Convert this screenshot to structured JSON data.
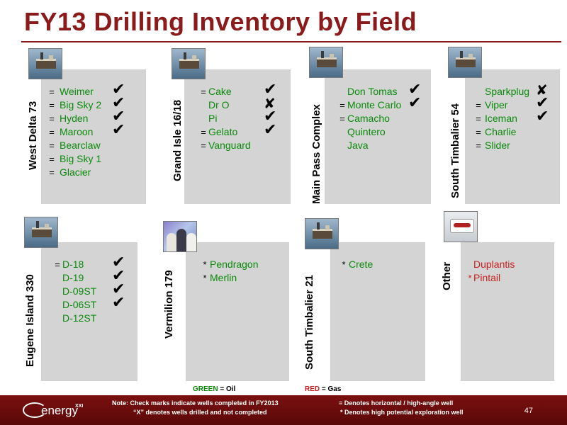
{
  "title": "FY13 Drilling Inventory by Field",
  "fields": [
    {
      "name": "West Delta 73",
      "image": "offshore-platform-photo",
      "wells": [
        {
          "name": "Weimer",
          "marker": "=",
          "status": "check"
        },
        {
          "name": "Big Sky 2",
          "marker": "=",
          "status": "check"
        },
        {
          "name": "Hyden",
          "marker": "=",
          "status": "check"
        },
        {
          "name": "Maroon",
          "marker": "=",
          "status": "check"
        },
        {
          "name": "Bearclaw",
          "marker": "=",
          "status": ""
        },
        {
          "name": "Big Sky 1",
          "marker": "=",
          "status": ""
        },
        {
          "name": "Glacier",
          "marker": "=",
          "status": ""
        }
      ]
    },
    {
      "name": "Grand Isle 16/18",
      "image": "offshore-platform-photo",
      "wells": [
        {
          "name": "Cake",
          "marker": "=",
          "status": "check"
        },
        {
          "name": "Dr O",
          "marker": "",
          "status": "x"
        },
        {
          "name": "Pi",
          "marker": "",
          "status": "check"
        },
        {
          "name": "Gelato",
          "marker": "=",
          "status": "check"
        },
        {
          "name": "Vanguard",
          "marker": "=",
          "status": ""
        }
      ]
    },
    {
      "name": "Main Pass Complex",
      "image": "offshore-platform-photo",
      "wells": [
        {
          "name": "Don Tomas",
          "marker": "",
          "status": "check"
        },
        {
          "name": "Monte Carlo",
          "marker": "=",
          "status": "check"
        },
        {
          "name": "Camacho",
          "marker": "=",
          "status": ""
        },
        {
          "name": "Quintero",
          "marker": "",
          "status": ""
        },
        {
          "name": "Java",
          "marker": "",
          "status": ""
        }
      ]
    },
    {
      "name": "South Timbalier 54",
      "image": "offshore-platform-photo",
      "wells": [
        {
          "name": "Sparkplug",
          "marker": "",
          "status": "x"
        },
        {
          "name": "Viper",
          "marker": "=",
          "status": "check"
        },
        {
          "name": "Iceman",
          "marker": "=",
          "status": "check"
        },
        {
          "name": "Charlie",
          "marker": "=",
          "status": ""
        },
        {
          "name": "Slider",
          "marker": "=",
          "status": ""
        }
      ]
    },
    {
      "name": "Eugene Island 330",
      "image": "offshore-platform-photo",
      "wells": [
        {
          "name": "D-18",
          "marker": "=",
          "status": "check"
        },
        {
          "name": "D-19",
          "marker": "",
          "status": "check"
        },
        {
          "name": "D-09ST",
          "marker": "",
          "status": "check"
        },
        {
          "name": "D-06ST",
          "marker": "",
          "status": "check"
        },
        {
          "name": "D-12ST",
          "marker": "",
          "status": ""
        }
      ]
    },
    {
      "name": "Vermilion 179",
      "image": "people-meeting-photo",
      "wells": [
        {
          "name": "Pendragon",
          "marker": "*",
          "status": ""
        },
        {
          "name": "Merlin",
          "marker": "*",
          "status": ""
        }
      ]
    },
    {
      "name": "South Timbalier 21",
      "image": "offshore-platform-photo",
      "wells": [
        {
          "name": "Crete",
          "marker": "*",
          "status": ""
        }
      ]
    },
    {
      "name": "Other",
      "image": "company-sign-photo",
      "wells": [
        {
          "name": "Duplantis",
          "marker": "",
          "status": "",
          "color": "red"
        },
        {
          "name": "Pintail",
          "marker": "*",
          "status": "",
          "color": "red"
        }
      ]
    }
  ],
  "legend": {
    "green_word": "GREEN",
    "green_rest": " = Oil",
    "red_word": "RED",
    "red_rest": " = Gas"
  },
  "footer": {
    "logo_text": "energy",
    "logo_sup": "XXI",
    "note_line1": "Note:  Check marks indicate wells completed in FY2013",
    "note_line2": "“X” denotes wells drilled and not completed",
    "note_right1": "= Denotes horizontal / high-angle well",
    "note_right2": "* Denotes high potential exploration well",
    "page_number": "47"
  },
  "colors": {
    "title": "#8b1a1a",
    "oil": "#0a8a0a",
    "gas": "#c62020",
    "panel": "#d4d4d4",
    "footer": "#6a0c0c"
  }
}
